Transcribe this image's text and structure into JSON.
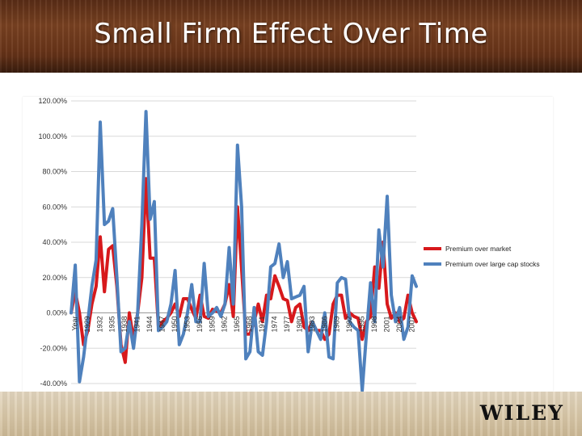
{
  "slide": {
    "title": "Small Firm Effect Over Time",
    "brand": "WILEY"
  },
  "colors": {
    "premium_over_market": "#d7191c",
    "premium_over_large_cap": "#4f81bd",
    "gridline": "#d9d9d9"
  },
  "chart_data": {
    "type": "line",
    "ylim": [
      -40,
      120
    ],
    "y_ticks": [
      "-40.00%",
      "-20.00%",
      "0.00%",
      "20.00%",
      "40.00%",
      "60.00%",
      "80.00%",
      "100.00%",
      "120.00%"
    ],
    "x_labels": [
      "Year",
      "1929",
      "1932",
      "1935",
      "1938",
      "1941",
      "1944",
      "1947",
      "1950",
      "1953",
      "1956",
      "1959",
      "1962",
      "1965",
      "1968",
      "1971",
      "1974",
      "1977",
      "1980",
      "1983",
      "1986",
      "1989",
      "1992",
      "1995",
      "1998",
      "2001",
      "2004",
      "2007"
    ],
    "grid": "horizontal",
    "legend_position": "right",
    "x": [
      1926,
      1927,
      1928,
      1929,
      1930,
      1931,
      1932,
      1933,
      1934,
      1935,
      1936,
      1937,
      1938,
      1939,
      1940,
      1941,
      1942,
      1943,
      1944,
      1945,
      1946,
      1947,
      1948,
      1949,
      1950,
      1951,
      1952,
      1953,
      1954,
      1955,
      1956,
      1957,
      1958,
      1959,
      1960,
      1961,
      1962,
      1963,
      1964,
      1965,
      1966,
      1967,
      1968,
      1969,
      1970,
      1971,
      1972,
      1973,
      1974,
      1975,
      1976,
      1977,
      1978,
      1979,
      1980,
      1981,
      1982,
      1983,
      1984,
      1985,
      1986,
      1987,
      1988,
      1989,
      1990,
      1991,
      1992,
      1993,
      1994,
      1995,
      1996,
      1997,
      1998,
      1999,
      2000,
      2001,
      2002,
      2003,
      2004,
      2005,
      2006,
      2007,
      2008,
      2009
    ],
    "series": [
      {
        "name": "Premium over market",
        "values": [
          0,
          12,
          0,
          -18,
          -10,
          5,
          15,
          43,
          12,
          36,
          38,
          15,
          -18,
          -28,
          0,
          -15,
          0,
          20,
          76,
          31,
          31,
          -8,
          -5,
          -3,
          0,
          5,
          -2,
          8,
          8,
          2,
          -3,
          10,
          -2,
          -3,
          2,
          1,
          0,
          5,
          16,
          -2,
          60,
          25,
          -12,
          -12,
          -5,
          5,
          -5,
          10,
          8,
          21,
          15,
          8,
          7,
          -5,
          3,
          5,
          -8,
          -10,
          -5,
          -10,
          -10,
          -15,
          -12,
          5,
          10,
          10,
          -3,
          0,
          -2,
          -3,
          -15,
          -5,
          -2,
          26,
          14,
          40,
          5,
          -3,
          0,
          -5,
          -3,
          10,
          0,
          -5
        ]
      },
      {
        "name": "Premium over large cap stocks",
        "values": [
          0,
          27,
          -39,
          -25,
          -5,
          15,
          30,
          108,
          50,
          52,
          59,
          20,
          -22,
          -20,
          -5,
          -20,
          0,
          50,
          114,
          53,
          63,
          -10,
          -8,
          -5,
          5,
          24,
          -18,
          -12,
          0,
          16,
          -5,
          -5,
          28,
          -2,
          0,
          3,
          -2,
          5,
          37,
          5,
          95,
          60,
          -26,
          -22,
          3,
          -22,
          -24,
          -5,
          26,
          28,
          39,
          20,
          29,
          8,
          9,
          10,
          15,
          -22,
          -5,
          -10,
          -15,
          0,
          -25,
          -26,
          17,
          20,
          19,
          -5,
          -8,
          -10,
          -44,
          -12,
          17,
          -5,
          47,
          26,
          66,
          10,
          -5,
          3,
          -15,
          -8,
          21,
          15
        ]
      }
    ]
  }
}
